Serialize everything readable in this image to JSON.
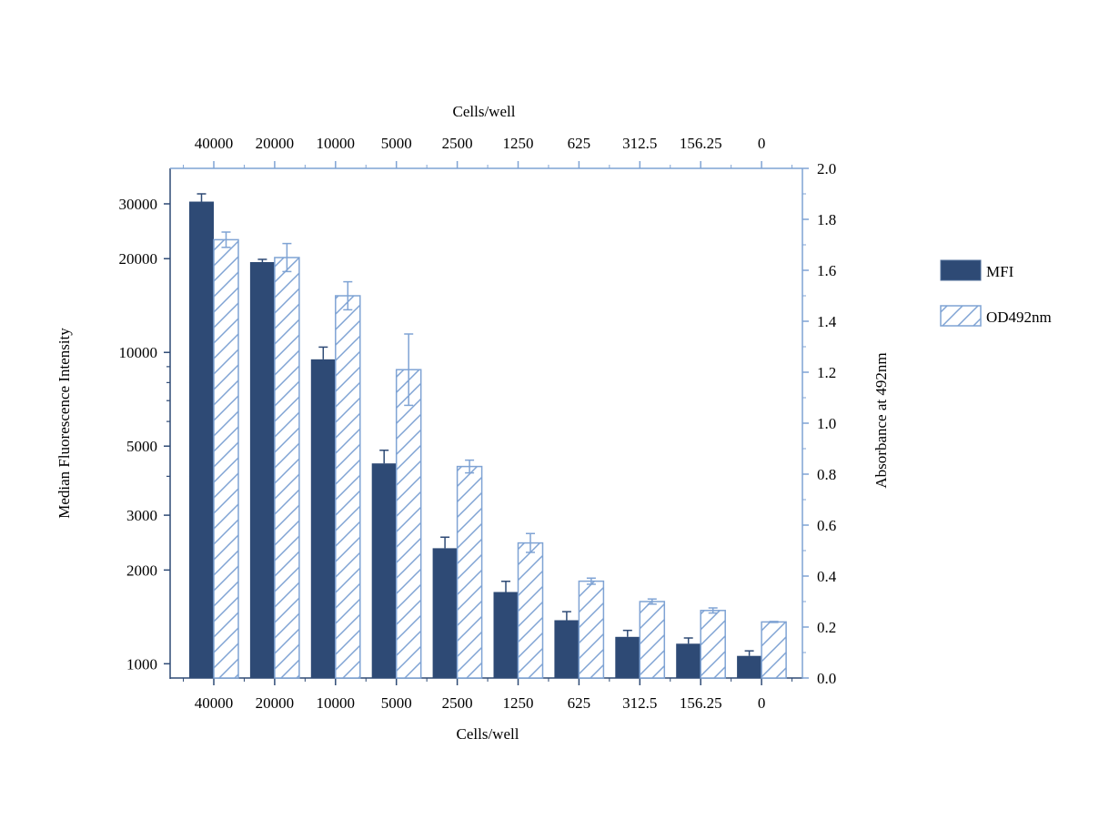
{
  "chart_data": {
    "type": "bar",
    "xlabel_bottom": "Cells/well",
    "xlabel_top": "Cells/well",
    "ylabel_left": "Median Fluorescence Intensity",
    "ylabel_right": "Absorbance at 492nm",
    "categories": [
      "40000",
      "20000",
      "10000",
      "5000",
      "2500",
      "1250",
      "625",
      "312.5",
      "156.25",
      "0"
    ],
    "left_axis": {
      "scale": "log",
      "range": [
        900,
        39000
      ],
      "ticks": [
        1000,
        2000,
        3000,
        5000,
        10000,
        20000,
        30000
      ],
      "tick_labels": [
        "1000",
        "2000",
        "3000",
        "5000",
        "10000",
        "20000",
        "30000"
      ]
    },
    "right_axis": {
      "scale": "linear",
      "range": [
        0,
        2.0
      ],
      "ticks": [
        0.0,
        0.2,
        0.4,
        0.6,
        0.8,
        1.0,
        1.2,
        1.4,
        1.6,
        1.8,
        2.0
      ],
      "tick_labels": [
        "0.0",
        "0.2",
        "0.4",
        "0.6",
        "0.8",
        "1.0",
        "1.2",
        "1.4",
        "1.6",
        "1.8",
        "2.0"
      ]
    },
    "series": [
      {
        "name": "MFI",
        "axis": "left",
        "color": "#2e4a75",
        "values": [
          30500,
          19500,
          9500,
          4400,
          2350,
          1700,
          1380,
          1220,
          1160,
          1060
        ],
        "errors": [
          1800,
          400,
          900,
          450,
          200,
          140,
          90,
          60,
          50,
          40
        ]
      },
      {
        "name": "OD492nm",
        "axis": "right",
        "color": "#7fa3d4",
        "pattern": "hatched",
        "values": [
          1.72,
          1.65,
          1.5,
          1.21,
          0.83,
          0.53,
          0.38,
          0.3,
          0.265,
          0.22
        ],
        "errors": [
          0.03,
          0.055,
          0.055,
          0.14,
          0.025,
          0.037,
          0.012,
          0.01,
          0.01,
          0.002
        ]
      }
    ],
    "legend_position": "right",
    "grid": false
  }
}
